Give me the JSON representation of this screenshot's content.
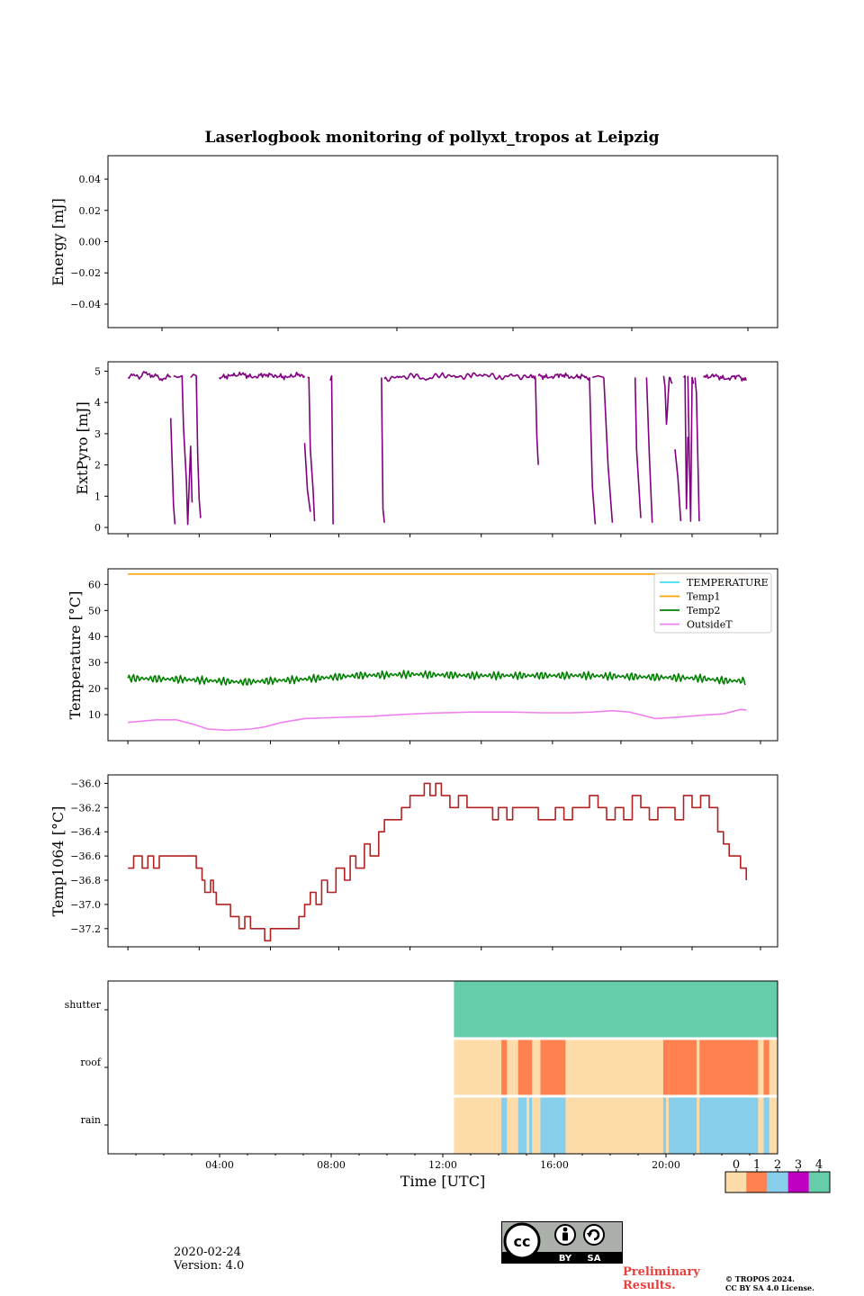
{
  "title": "Laserlogbook monitoring of pollyxt_tropos at Leipzig",
  "footer": {
    "date": "2020-02-24",
    "version": "Version: 4.0",
    "preliminary_line1": "Preliminary",
    "preliminary_line2": "Results.",
    "copyright_line1": "© TROPOS 2024.",
    "copyright_line2": "CC BY SA 4.0 License.",
    "cc_by": "BY",
    "cc_sa": "SA",
    "cc_logo": "cc"
  },
  "colorbar": {
    "labels": [
      "0",
      "1",
      "2",
      "3",
      "4"
    ],
    "colors": [
      "#FDDCA9",
      "#FF8150",
      "#87CEEB",
      "#C000C0",
      "#66CDAA"
    ]
  },
  "chart_data": [
    {
      "type": "line",
      "id": "energy",
      "ylabel": "Energy [mJ]",
      "ylim": [
        -0.055,
        0.055
      ],
      "yticks": [
        -0.04,
        -0.02,
        0.0,
        0.02,
        0.04
      ],
      "yticklabels": [
        "−0.04",
        "−0.02",
        "0.00",
        "0.02",
        "0.04"
      ],
      "xlim": [
        -0.9,
        23.9
      ],
      "xticks": [
        1.1,
        5.4,
        9.8,
        14.1,
        18.5,
        22.8
      ],
      "series": []
    },
    {
      "type": "line",
      "id": "extpyro",
      "ylabel": "ExtPyro [mJ]",
      "ylim": [
        -0.2,
        5.3
      ],
      "yticks": [
        0,
        1,
        2,
        3,
        4,
        5
      ],
      "yticklabels": [
        "0",
        "1",
        "2",
        "3",
        "4",
        "5"
      ],
      "xlim": [
        -0.7,
        22.8
      ],
      "xticks": [
        0.0,
        2.5,
        5.0,
        7.4,
        9.9,
        12.4,
        14.9,
        17.3,
        19.8,
        22.2
      ],
      "series": [
        {
          "name": "ExtPyro",
          "color": "#800080",
          "segments": [
            {
              "x": [
                0.0,
                0.2,
                0.4,
                0.6,
                0.8,
                1.0,
                1.2,
                1.4,
                1.5
              ],
              "y": [
                4.8,
                4.9,
                4.75,
                4.95,
                4.8,
                4.85,
                4.7,
                4.9,
                4.8
              ]
            },
            {
              "x": [
                1.5,
                1.6,
                1.65
              ],
              "y": [
                3.5,
                0.7,
                0.1
              ]
            },
            {
              "x": [
                1.6,
                1.75,
                1.9,
                1.95,
                2.05,
                2.1,
                2.2,
                2.25
              ],
              "y": [
                4.85,
                4.8,
                4.85,
                3.2,
                1.5,
                0.1,
                2.6,
                0.8
              ]
            },
            {
              "x": [
                2.2,
                2.3,
                2.4,
                2.45,
                2.5,
                2.55
              ],
              "y": [
                4.8,
                4.9,
                4.85,
                2.3,
                0.9,
                0.3
              ]
            },
            {
              "x": [
                3.2,
                3.6,
                4.0,
                4.4,
                4.8,
                5.2,
                5.6,
                6.0,
                6.2
              ],
              "y": [
                4.8,
                4.85,
                4.9,
                4.8,
                4.9,
                4.85,
                4.8,
                4.9,
                4.85
              ]
            },
            {
              "x": [
                6.2,
                6.3,
                6.4
              ],
              "y": [
                2.7,
                1.2,
                0.5
              ]
            },
            {
              "x": [
                6.3,
                6.35,
                6.4,
                6.5,
                6.55
              ],
              "y": [
                4.8,
                4.8,
                2.5,
                1.2,
                0.2
              ]
            },
            {
              "x": [
                7.1,
                7.15,
                7.2
              ],
              "y": [
                4.7,
                4.85,
                0.1
              ]
            },
            {
              "x": [
                8.9,
                8.95,
                9.0
              ],
              "y": [
                4.8,
                0.6,
                0.15
              ]
            },
            {
              "x": [
                9.0,
                9.5,
                10.0,
                10.5,
                11.0,
                11.5,
                12.0,
                12.5,
                13.0,
                13.5,
                14.0,
                14.3
              ],
              "y": [
                4.75,
                4.8,
                4.85,
                4.75,
                4.9,
                4.8,
                4.85,
                4.9,
                4.8,
                4.85,
                4.8,
                4.85
              ]
            },
            {
              "x": [
                14.3,
                14.35,
                14.4
              ],
              "y": [
                4.8,
                2.9,
                2.0
              ]
            },
            {
              "x": [
                14.4,
                14.8,
                15.2,
                15.6,
                16.0,
                16.2
              ],
              "y": [
                4.85,
                4.8,
                4.9,
                4.8,
                4.85,
                4.8
              ]
            },
            {
              "x": [
                16.2,
                16.3,
                16.4
              ],
              "y": [
                4.8,
                1.3,
                0.1
              ]
            },
            {
              "x": [
                16.3,
                16.5,
                16.7
              ],
              "y": [
                4.8,
                4.85,
                4.8
              ]
            },
            {
              "x": [
                16.7,
                16.85,
                17.0
              ],
              "y": [
                4.8,
                2.0,
                0.15
              ]
            },
            {
              "x": [
                17.8,
                17.85,
                18.0
              ],
              "y": [
                4.8,
                2.5,
                0.3
              ]
            },
            {
              "x": [
                18.2,
                18.3,
                18.4
              ],
              "y": [
                4.8,
                2.3,
                0.15
              ]
            },
            {
              "x": [
                18.8,
                18.85,
                18.9,
                19.0,
                19.1
              ],
              "y": [
                4.85,
                4.5,
                3.3,
                4.8,
                4.6
              ]
            },
            {
              "x": [
                19.2,
                19.3,
                19.4
              ],
              "y": [
                2.5,
                1.6,
                0.2
              ]
            },
            {
              "x": [
                19.5,
                19.55,
                19.6,
                19.65
              ],
              "y": [
                4.8,
                4.85,
                0.6,
                2.9
              ]
            },
            {
              "x": [
                19.65,
                19.7,
                19.75,
                19.8,
                19.85
              ],
              "y": [
                4.85,
                2.2,
                0.2,
                4.8,
                4.6
              ]
            },
            {
              "x": [
                19.9,
                19.95,
                20.05
              ],
              "y": [
                4.8,
                4.3,
                0.2
              ]
            },
            {
              "x": [
                20.2,
                20.6,
                21.0,
                21.4,
                21.7
              ],
              "y": [
                4.8,
                4.85,
                4.75,
                4.85,
                4.7
              ]
            }
          ]
        }
      ]
    },
    {
      "type": "line",
      "id": "temperature",
      "ylabel": "Temperature [°C]",
      "ylim": [
        0,
        66
      ],
      "yticks": [
        10,
        20,
        30,
        40,
        50,
        60
      ],
      "yticklabels": [
        "10",
        "20",
        "30",
        "40",
        "50",
        "60"
      ],
      "xlim": [
        -0.7,
        22.8
      ],
      "xticks": [
        0.0,
        2.5,
        5.0,
        7.4,
        9.9,
        12.4,
        14.9,
        17.3,
        19.8,
        22.2
      ],
      "legend": {
        "placement": "upper-right",
        "entries": [
          "TEMPERATURE",
          "Temp1",
          "Temp2",
          "OutsideT"
        ]
      },
      "series": [
        {
          "name": "TEMPERATURE",
          "color": "#40E0F0",
          "x": [],
          "y": []
        },
        {
          "name": "Temp1",
          "color": "#FFA500",
          "x": [
            0.0,
            21.7
          ],
          "y": [
            64,
            64
          ]
        },
        {
          "name": "Temp2",
          "color": "#008000",
          "x": [
            0,
            2,
            4,
            6,
            8,
            10,
            12,
            14,
            16,
            18,
            20,
            21,
            21.7
          ],
          "y": [
            24,
            23.5,
            22.5,
            23.5,
            25,
            25.5,
            25,
            25,
            25,
            24.5,
            24,
            23,
            23
          ],
          "jitter": 1.6
        },
        {
          "name": "OutsideT",
          "color": "#EE82EE",
          "x": [
            0,
            1,
            1.7,
            2.3,
            2.8,
            3.5,
            4.3,
            4.8,
            5.4,
            6.2,
            7.5,
            8.5,
            9.5,
            10.5,
            12,
            13.5,
            14.6,
            15.5,
            16.3,
            17.0,
            17.6,
            18.5,
            19.5,
            20.2,
            20.9,
            21.5,
            21.7
          ],
          "y": [
            7,
            8,
            8,
            6.3,
            4.5,
            4,
            4.5,
            5.3,
            7,
            8.5,
            9,
            9.3,
            10,
            10.5,
            11,
            11,
            10.7,
            10.7,
            11,
            11.5,
            11,
            8.5,
            9.2,
            9.8,
            10.3,
            12,
            11.7
          ]
        }
      ]
    },
    {
      "type": "line",
      "id": "temp1064",
      "ylabel": "Temp1064 [°C]",
      "ylim": [
        -37.35,
        -35.93
      ],
      "yticks": [
        -37.2,
        -37.0,
        -36.8,
        -36.6,
        -36.4,
        -36.2,
        -36.0
      ],
      "yticklabels": [
        "−37.2",
        "−37.0",
        "−36.8",
        "−36.6",
        "−36.4",
        "−36.2",
        "−36.0"
      ],
      "xlim": [
        -0.7,
        22.8
      ],
      "xticks": [
        0.0,
        2.5,
        5.0,
        7.4,
        9.9,
        12.4,
        14.9,
        17.3,
        19.8,
        22.2
      ],
      "series": [
        {
          "name": "Temp1064",
          "color": "#B22222",
          "step": true,
          "x": [
            0.0,
            0.2,
            0.5,
            0.7,
            0.9,
            1.1,
            1.4,
            1.7,
            2.0,
            2.4,
            2.6,
            2.7,
            2.9,
            3.0,
            3.1,
            3.3,
            3.6,
            3.9,
            4.1,
            4.3,
            4.6,
            4.8,
            5.0,
            5.5,
            6.0,
            6.2,
            6.4,
            6.6,
            6.8,
            7.0,
            7.3,
            7.6,
            7.8,
            8.0,
            8.3,
            8.5,
            8.8,
            9.0,
            9.3,
            9.6,
            9.9,
            10.2,
            10.4,
            10.6,
            10.8,
            11.0,
            11.3,
            11.6,
            11.9,
            12.2,
            12.5,
            12.8,
            13.0,
            13.3,
            13.5,
            13.8,
            14.1,
            14.4,
            14.7,
            15.0,
            15.3,
            15.6,
            15.9,
            16.2,
            16.5,
            16.8,
            17.1,
            17.4,
            17.7,
            18.0,
            18.3,
            18.6,
            18.9,
            19.2,
            19.5,
            19.8,
            20.1,
            20.4,
            20.7,
            20.9,
            21.1,
            21.3,
            21.5,
            21.7
          ],
          "y": [
            -36.7,
            -36.6,
            -36.7,
            -36.6,
            -36.7,
            -36.6,
            -36.6,
            -36.6,
            -36.6,
            -36.7,
            -36.8,
            -36.9,
            -36.8,
            -36.9,
            -37.0,
            -37.0,
            -37.1,
            -37.2,
            -37.1,
            -37.2,
            -37.2,
            -37.3,
            -37.2,
            -37.2,
            -37.1,
            -37.0,
            -36.9,
            -37.0,
            -36.8,
            -36.9,
            -36.7,
            -36.8,
            -36.6,
            -36.7,
            -36.5,
            -36.6,
            -36.4,
            -36.3,
            -36.3,
            -36.2,
            -36.1,
            -36.1,
            -36.0,
            -36.1,
            -36.0,
            -36.1,
            -36.2,
            -36.1,
            -36.2,
            -36.2,
            -36.2,
            -36.3,
            -36.2,
            -36.3,
            -36.2,
            -36.2,
            -36.2,
            -36.3,
            -36.3,
            -36.2,
            -36.3,
            -36.2,
            -36.2,
            -36.1,
            -36.2,
            -36.3,
            -36.2,
            -36.3,
            -36.1,
            -36.2,
            -36.3,
            -36.2,
            -36.2,
            -36.3,
            -36.1,
            -36.2,
            -36.1,
            -36.2,
            -36.4,
            -36.5,
            -36.6,
            -36.6,
            -36.7,
            -36.8
          ]
        }
      ]
    },
    {
      "type": "heatmap",
      "id": "status",
      "rows": [
        "shutter",
        "roof",
        "rain"
      ],
      "xlabel": "Time [UTC]",
      "xlim": [
        0,
        24
      ],
      "xticks": [
        4,
        8,
        12,
        16,
        20
      ],
      "xticklabels": [
        "04:00",
        "08:00",
        "12:00",
        "16:00",
        "20:00"
      ],
      "segments": [
        {
          "row": 0,
          "x0": 12.4,
          "x1": 24,
          "value": 4
        },
        {
          "row": 1,
          "x0": 12.4,
          "x1": 24,
          "value": 0
        },
        {
          "row": 1,
          "x0": 14.1,
          "x1": 14.3,
          "value": 1
        },
        {
          "row": 1,
          "x0": 14.7,
          "x1": 15.2,
          "value": 1
        },
        {
          "row": 1,
          "x0": 15.5,
          "x1": 16.4,
          "value": 1
        },
        {
          "row": 1,
          "x0": 19.9,
          "x1": 20.1,
          "value": 1
        },
        {
          "row": 1,
          "x0": 20.1,
          "x1": 21.1,
          "value": 1
        },
        {
          "row": 1,
          "x0": 21.2,
          "x1": 23.3,
          "value": 1
        },
        {
          "row": 1,
          "x0": 23.5,
          "x1": 23.7,
          "value": 1
        },
        {
          "row": 2,
          "x0": 12.4,
          "x1": 24,
          "value": 0
        },
        {
          "row": 2,
          "x0": 14.1,
          "x1": 14.3,
          "value": 2
        },
        {
          "row": 2,
          "x0": 14.7,
          "x1": 15.0,
          "value": 2
        },
        {
          "row": 2,
          "x0": 15.1,
          "x1": 15.2,
          "value": 2
        },
        {
          "row": 2,
          "x0": 15.5,
          "x1": 16.4,
          "value": 2
        },
        {
          "row": 2,
          "x0": 19.9,
          "x1": 20.0,
          "value": 2
        },
        {
          "row": 2,
          "x0": 20.1,
          "x1": 21.1,
          "value": 2
        },
        {
          "row": 2,
          "x0": 21.2,
          "x1": 23.3,
          "value": 2
        },
        {
          "row": 2,
          "x0": 23.5,
          "x1": 23.7,
          "value": 2
        }
      ]
    }
  ]
}
